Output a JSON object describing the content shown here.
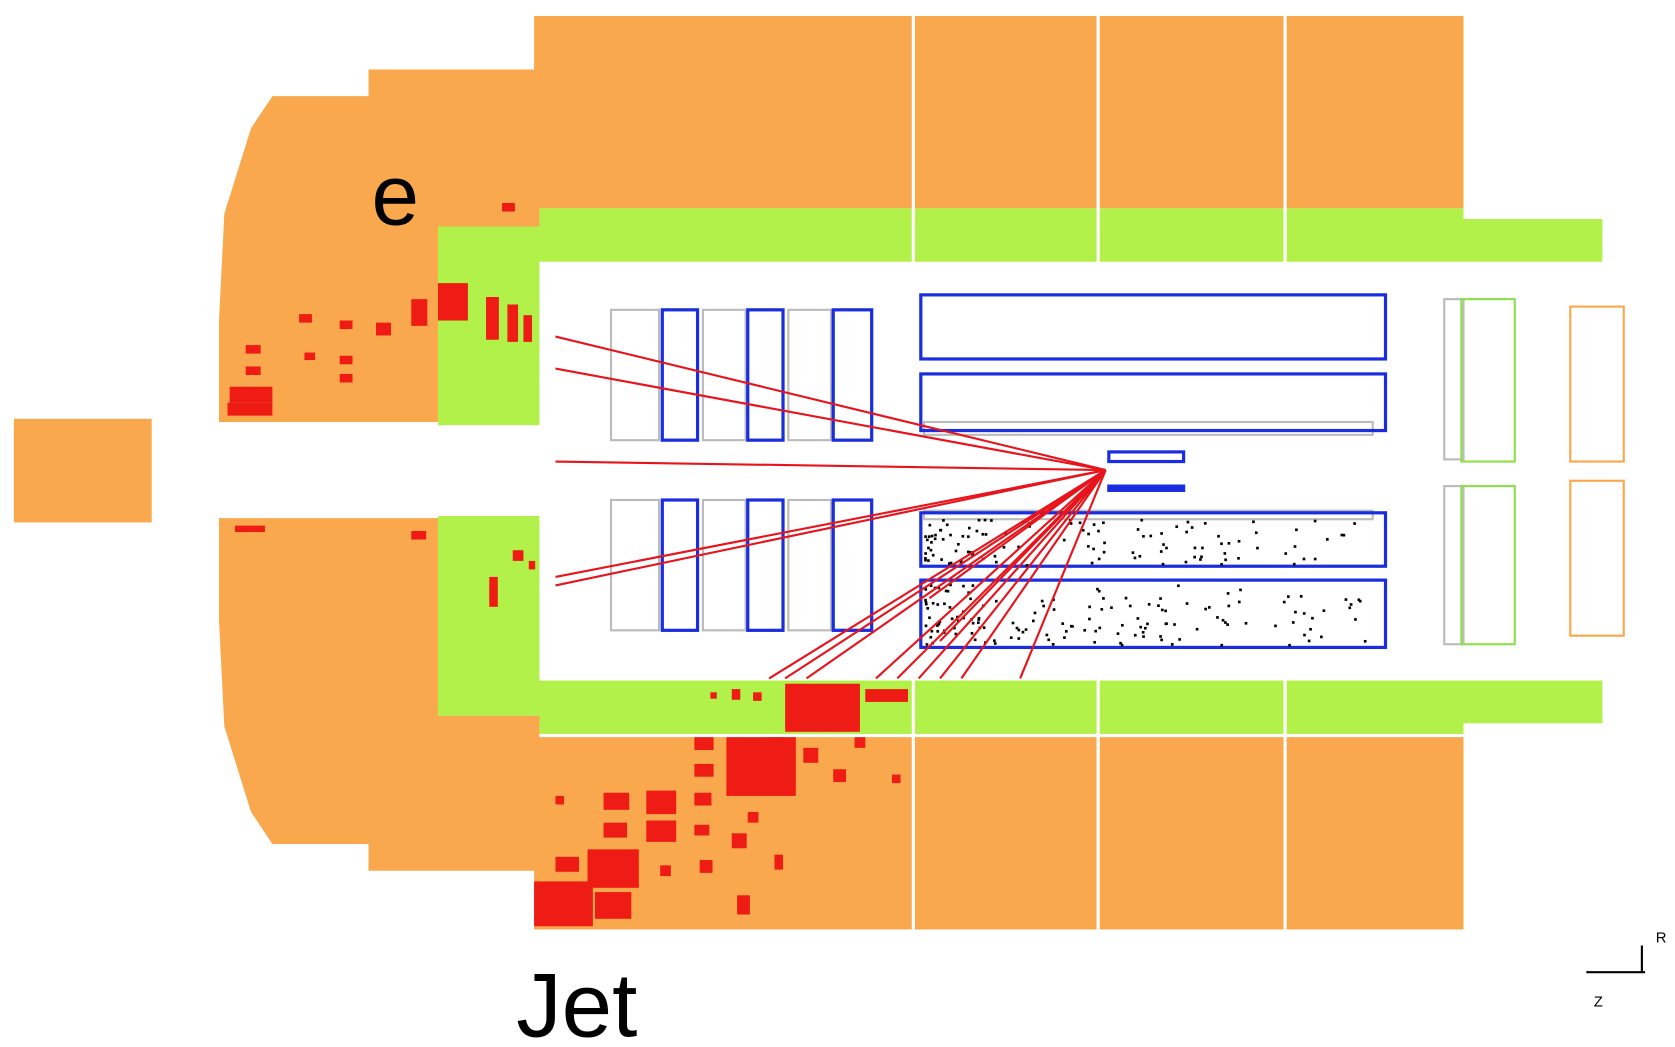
{
  "labels": {
    "electron": "e",
    "jet": "Jet"
  },
  "axes": {
    "r": "R",
    "z": "Z"
  }
}
